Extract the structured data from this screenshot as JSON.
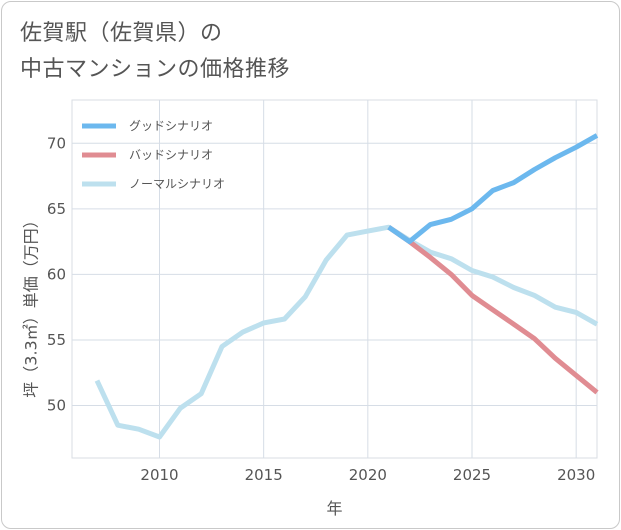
{
  "title": {
    "line1": "佐賀駅（佐賀県）の",
    "line2": "中古マンションの価格推移"
  },
  "chart_data": {
    "type": "line",
    "title": "佐賀駅（佐賀県）の中古マンションの価格推移",
    "xlabel": "年",
    "ylabel": "坪（3.3㎡）単価（万円）",
    "xlim": [
      2005.8,
      2031
    ],
    "ylim": [
      46,
      73.3
    ],
    "xticks": [
      2010,
      2015,
      2020,
      2025,
      2030
    ],
    "yticks": [
      50,
      55,
      60,
      65,
      70
    ],
    "grid": true,
    "legend_position": "top-left",
    "series": [
      {
        "name": "グッドシナリオ",
        "color": "#6cb8ee",
        "x": [
          2021,
          2022,
          2023,
          2024,
          2025,
          2026,
          2027,
          2028,
          2029,
          2030,
          2031
        ],
        "values": [
          63.6,
          62.5,
          63.8,
          64.2,
          65.0,
          66.4,
          67.0,
          68.0,
          68.9,
          69.7,
          70.6
        ]
      },
      {
        "name": "バッドシナリオ",
        "color": "#e08c92",
        "x": [
          2021,
          2022,
          2023,
          2024,
          2025,
          2026,
          2027,
          2028,
          2029,
          2030,
          2031
        ],
        "values": [
          63.6,
          62.5,
          61.3,
          60.0,
          58.4,
          57.3,
          56.2,
          55.1,
          53.6,
          52.3,
          51.0
        ]
      },
      {
        "name": "ノーマルシナリオ",
        "color": "#bde0ee",
        "x": [
          2007,
          2008,
          2009,
          2010,
          2011,
          2012,
          2013,
          2014,
          2015,
          2016,
          2017,
          2018,
          2019,
          2020,
          2021,
          2022,
          2023,
          2024,
          2025,
          2026,
          2027,
          2028,
          2029,
          2030,
          2031
        ],
        "values": [
          51.9,
          48.5,
          48.2,
          47.6,
          49.8,
          50.9,
          54.5,
          55.6,
          56.3,
          56.6,
          58.3,
          61.1,
          63.0,
          63.3,
          63.6,
          62.6,
          61.7,
          61.2,
          60.3,
          59.8,
          59.0,
          58.4,
          57.5,
          57.1,
          56.2
        ]
      }
    ]
  }
}
